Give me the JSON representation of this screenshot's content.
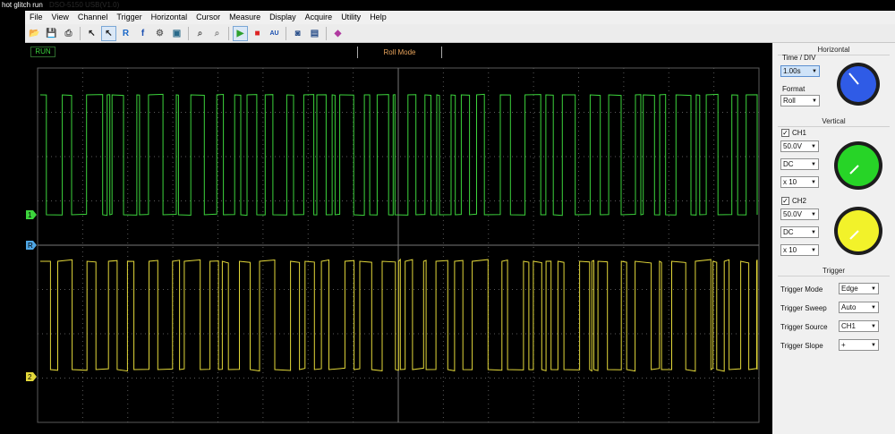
{
  "window": {
    "title": "hot glitch run",
    "title_ghost": "DSO-5150 USB(V1.0)"
  },
  "menu": [
    "File",
    "View",
    "Channel",
    "Trigger",
    "Horizontal",
    "Cursor",
    "Measure",
    "Display",
    "Acquire",
    "Utility",
    "Help"
  ],
  "toolbar": [
    {
      "icon": "open-folder-icon",
      "glyph": "📂",
      "color": "#c9a227"
    },
    {
      "icon": "save-disk-icon",
      "glyph": "💾",
      "color": "#2d4f9e"
    },
    {
      "icon": "print-icon",
      "glyph": "⎙",
      "color": "#555"
    },
    {
      "sep": true
    },
    {
      "icon": "select-arrow-icon",
      "glyph": "↖",
      "color": "#222"
    },
    {
      "icon": "select-arrow-alt-icon",
      "glyph": "↖",
      "color": "#222",
      "selected": true
    },
    {
      "icon": "reference-icon",
      "glyph": "R",
      "color": "#1a68c8"
    },
    {
      "icon": "math-fx-icon",
      "glyph": "f",
      "color": "#1a4fb0"
    },
    {
      "icon": "gear-icon",
      "glyph": "⚙",
      "color": "#666"
    },
    {
      "icon": "image-icon",
      "glyph": "▣",
      "color": "#2a6a8a"
    },
    {
      "sep": true
    },
    {
      "icon": "zoom-in-icon",
      "glyph": "⌕",
      "color": "#555"
    },
    {
      "icon": "zoom-out-icon",
      "glyph": "⌕",
      "color": "#888"
    },
    {
      "sep": true
    },
    {
      "icon": "run-play-icon",
      "glyph": "▶",
      "color": "#2ea02e",
      "selected": true
    },
    {
      "icon": "stop-icon",
      "glyph": "■",
      "color": "#d22"
    },
    {
      "icon": "auto-icon",
      "glyph": "AU",
      "color": "#1a4fb0"
    },
    {
      "sep": true
    },
    {
      "icon": "screen-capture-icon",
      "glyph": "◙",
      "color": "#2a4f8a"
    },
    {
      "icon": "window-layout-icon",
      "glyph": "▤",
      "color": "#2a4f8a"
    },
    {
      "sep": true
    },
    {
      "icon": "eraser-icon",
      "glyph": "◆",
      "color": "#b03aa0"
    }
  ],
  "status": {
    "run": "RUN",
    "mode": "Roll Mode"
  },
  "markers": {
    "ch1": "1",
    "ref": "R",
    "ch2": "2"
  },
  "colors": {
    "ch1": "#3cd43c",
    "ch2": "#e3d83a",
    "grid": "#5a5a5a",
    "horizontal_knob": "#2f5be6",
    "ch1_knob": "#27d427",
    "ch2_knob": "#f2f22a"
  },
  "panel": {
    "horizontal": {
      "title": "Horizontal",
      "time_div_label": "Time / DIV",
      "time_div": "1.00s",
      "format_label": "Format",
      "format": "Roll"
    },
    "vertical": {
      "title": "Vertical",
      "ch1": {
        "label": "CH1",
        "checked": true,
        "volts": "50.0V",
        "coupling": "DC",
        "probe": "x 10"
      },
      "ch2": {
        "label": "CH2",
        "checked": true,
        "volts": "50.0V",
        "coupling": "DC",
        "probe": "x 10"
      }
    },
    "trigger": {
      "title": "Trigger",
      "mode_label": "Trigger Mode",
      "mode": "Edge",
      "sweep_label": "Trigger Sweep",
      "sweep": "Auto",
      "source_label": "Trigger Source",
      "source": "CH1",
      "slope_label": "Trigger Slope",
      "slope": "+"
    }
  }
}
